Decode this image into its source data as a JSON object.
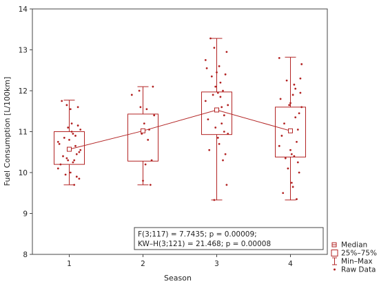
{
  "chart_data": {
    "type": "box",
    "xlabel": "Season",
    "ylabel": "Fuel Consumption [L/100km]",
    "categories": [
      "1",
      "2",
      "3",
      "4"
    ],
    "ylim": [
      8,
      14
    ],
    "yticks": [
      "8",
      "9",
      "10",
      "11",
      "12",
      "13",
      "14"
    ],
    "grid": false,
    "color": "#b22222",
    "boxes": [
      {
        "category": "1",
        "min": 9.7,
        "q1": 10.2,
        "median": 10.57,
        "q3": 11.0,
        "max": 11.77
      },
      {
        "category": "2",
        "min": 9.7,
        "q1": 10.28,
        "median": 11.02,
        "q3": 11.43,
        "max": 12.1
      },
      {
        "category": "3",
        "min": 9.33,
        "q1": 10.93,
        "median": 11.53,
        "q3": 11.97,
        "max": 13.28
      },
      {
        "category": "4",
        "min": 9.33,
        "q1": 10.38,
        "median": 11.02,
        "q3": 11.6,
        "max": 12.82
      }
    ],
    "raw_data": [
      [
        10.75,
        10.55,
        9.85,
        11.15,
        10.45,
        10.9,
        9.7,
        10.25,
        11.0,
        11.55,
        10.6,
        10.3,
        11.65,
        9.95,
        10.85,
        10.4,
        11.75,
        10.2,
        10.7,
        10.1,
        11.05,
        10.5,
        11.6,
        9.9,
        10.65,
        10.3,
        10.95,
        11.2,
        10.0,
        10.8,
        11.1,
        10.35
      ],
      [
        11.9,
        11.4,
        12.1,
        10.3,
        9.7,
        11.05,
        10.8,
        11.55,
        10.2,
        11.2,
        9.8,
        10.95,
        11.6,
        12.0
      ],
      [
        12.75,
        11.65,
        9.7,
        12.4,
        11.0,
        10.3,
        11.2,
        11.85,
        12.6,
        10.85,
        11.5,
        12.1,
        9.33,
        11.9,
        12.35,
        13.28,
        10.55,
        11.3,
        12.55,
        11.75,
        10.95,
        12.95,
        10.45,
        11.4,
        12.0,
        11.6,
        12.2,
        10.7,
        11.95,
        12.45,
        11.1,
        13.05
      ],
      [
        12.8,
        12.65,
        11.95,
        11.45,
        10.25,
        9.35,
        12.05,
        10.4,
        11.9,
        9.75,
        10.55,
        11.65,
        10.1,
        12.25,
        10.35,
        11.2,
        9.5,
        10.9,
        11.8,
        10.65,
        11.6,
        12.3,
        10.0,
        11.05,
        10.75,
        11.35,
        12.15,
        9.65,
        10.45,
        11.7
      ]
    ],
    "legend": {
      "position": "right-bottom",
      "entries": [
        {
          "symbol": "median",
          "label": "Median"
        },
        {
          "symbol": "box",
          "label": "25%–75%"
        },
        {
          "symbol": "whisker",
          "label": "Min–Max"
        },
        {
          "symbol": "dot",
          "label": "Raw Data"
        }
      ]
    },
    "annotation": [
      "F(3;117) = 7.7435; p = 0.00009;",
      "KW–H(3;121) = 21.468; p = 0.00008"
    ]
  }
}
